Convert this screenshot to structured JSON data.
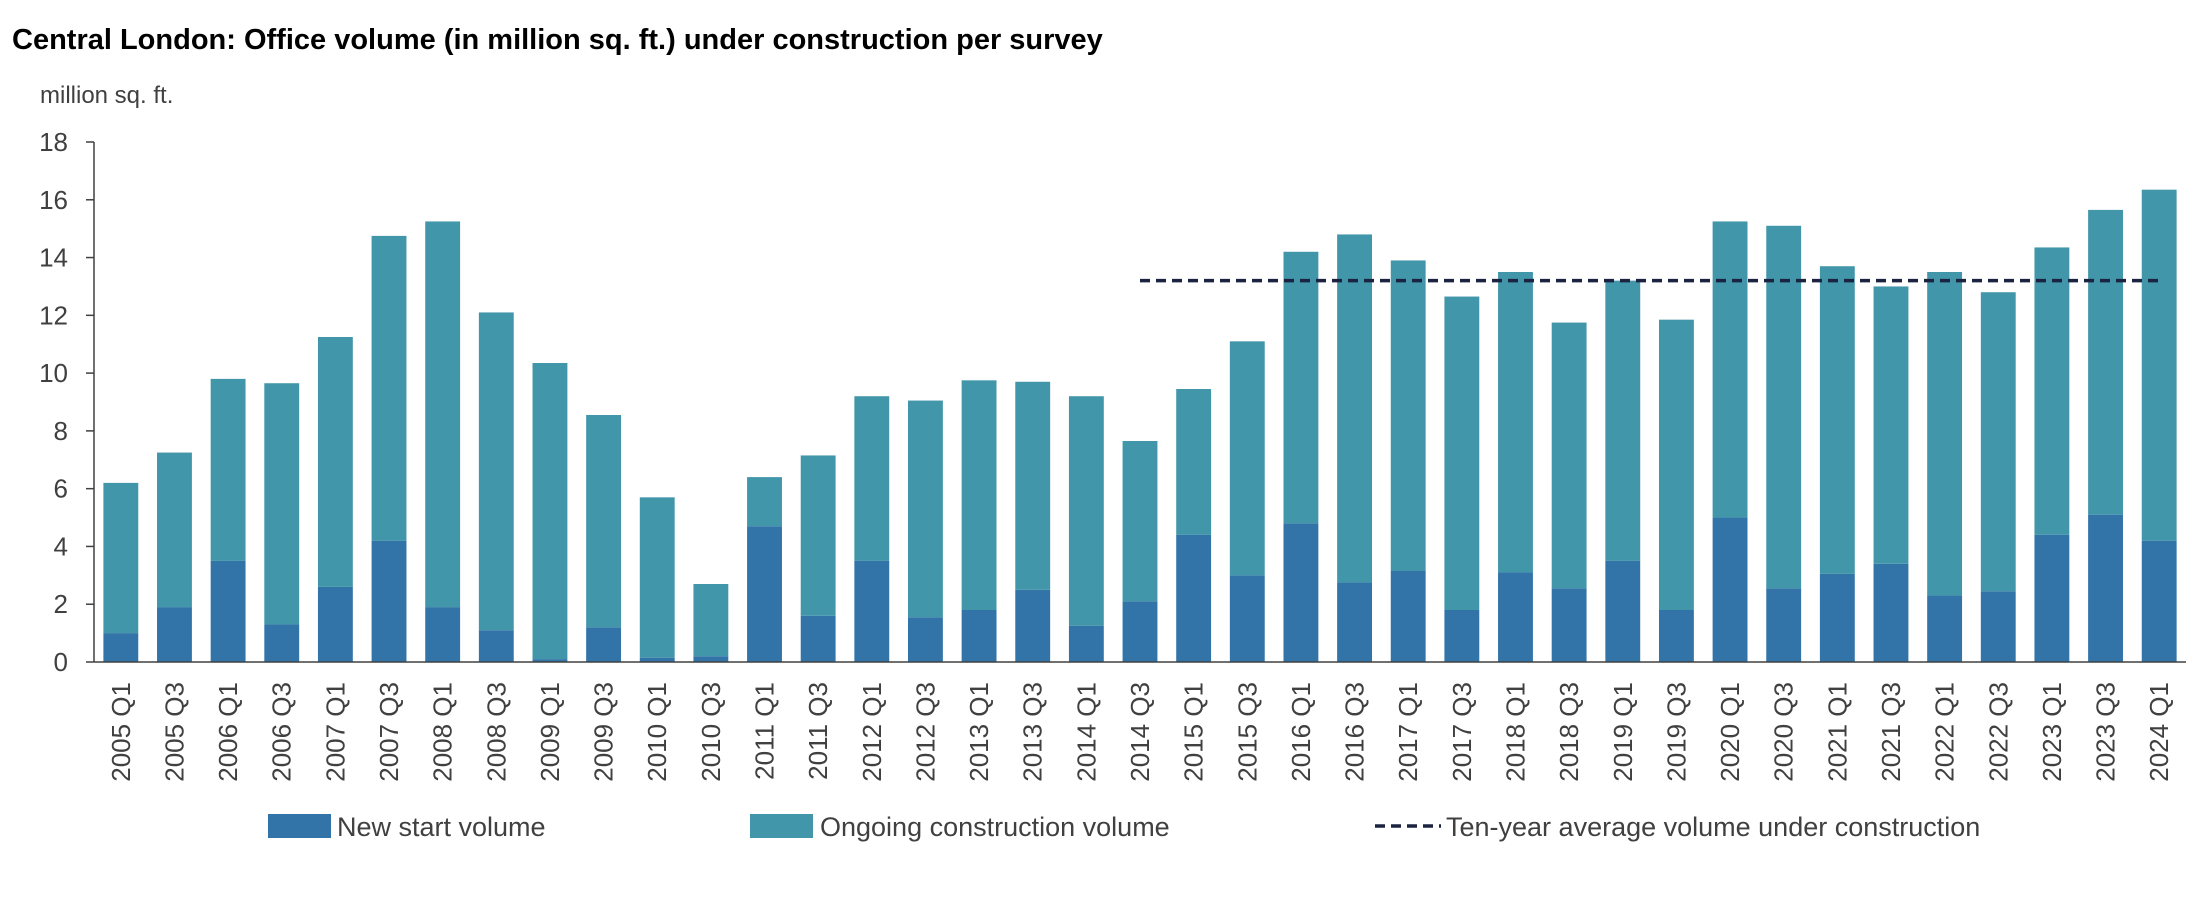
{
  "chart_data": {
    "type": "bar",
    "title": "Central London: Office volume (in million sq. ft.) under construction per survey",
    "ylabel": "million sq. ft.",
    "ylim": [
      0,
      18
    ],
    "yticks": [
      0,
      2,
      4,
      6,
      8,
      10,
      12,
      14,
      16,
      18
    ],
    "stacked": true,
    "categories": [
      "2005 Q1",
      "2005 Q3",
      "2006 Q1",
      "2006 Q3",
      "2007 Q1",
      "2007 Q3",
      "2008 Q1",
      "2008 Q3",
      "2009 Q1",
      "2009 Q3",
      "2010 Q1",
      "2010 Q3",
      "2011 Q1",
      "2011 Q3",
      "2012 Q1",
      "2012 Q3",
      "2013 Q1",
      "2013 Q3",
      "2014 Q1",
      "2014 Q3",
      "2015 Q1",
      "2015 Q3",
      "2016 Q1",
      "2016 Q3",
      "2017 Q1",
      "2017 Q3",
      "2018 Q1",
      "2018 Q3",
      "2019 Q1",
      "2019 Q3",
      "2020 Q1",
      "2020 Q3",
      "2021 Q1",
      "2021 Q3",
      "2022 Q1",
      "2022 Q3",
      "2023 Q1",
      "2023 Q3",
      "2024 Q1"
    ],
    "series": [
      {
        "name": "New start volume",
        "color": "#3274a8",
        "values": [
          1.0,
          1.9,
          3.5,
          1.3,
          2.6,
          4.2,
          1.9,
          1.1,
          0.1,
          1.2,
          0.15,
          0.2,
          4.7,
          1.6,
          3.5,
          1.55,
          1.8,
          2.5,
          1.25,
          2.1,
          4.4,
          3.0,
          4.8,
          2.75,
          3.15,
          1.8,
          3.1,
          2.55,
          3.5,
          1.8,
          5.0,
          2.55,
          3.05,
          3.4,
          2.3,
          2.45,
          4.4,
          5.1,
          4.2
        ]
      },
      {
        "name": "Ongoing construction volume",
        "color": "#4296aa",
        "values": [
          5.2,
          5.35,
          6.3,
          8.35,
          8.65,
          10.55,
          13.35,
          11.0,
          10.25,
          7.35,
          5.55,
          2.5,
          1.7,
          5.55,
          5.7,
          7.5,
          7.95,
          7.2,
          7.95,
          5.55,
          5.05,
          8.1,
          9.4,
          12.05,
          10.75,
          10.85,
          10.4,
          9.2,
          9.7,
          10.05,
          10.25,
          12.55,
          10.65,
          9.6,
          11.2,
          10.35,
          9.95,
          10.55,
          12.15
        ]
      }
    ],
    "reference_line": {
      "name": "Ten-year average volume under construction",
      "value": 13.2,
      "from": "2014 Q3",
      "to": "2024 Q1",
      "color": "#1c2340",
      "style": "dashed"
    },
    "legend": {
      "position": "bottom"
    }
  }
}
